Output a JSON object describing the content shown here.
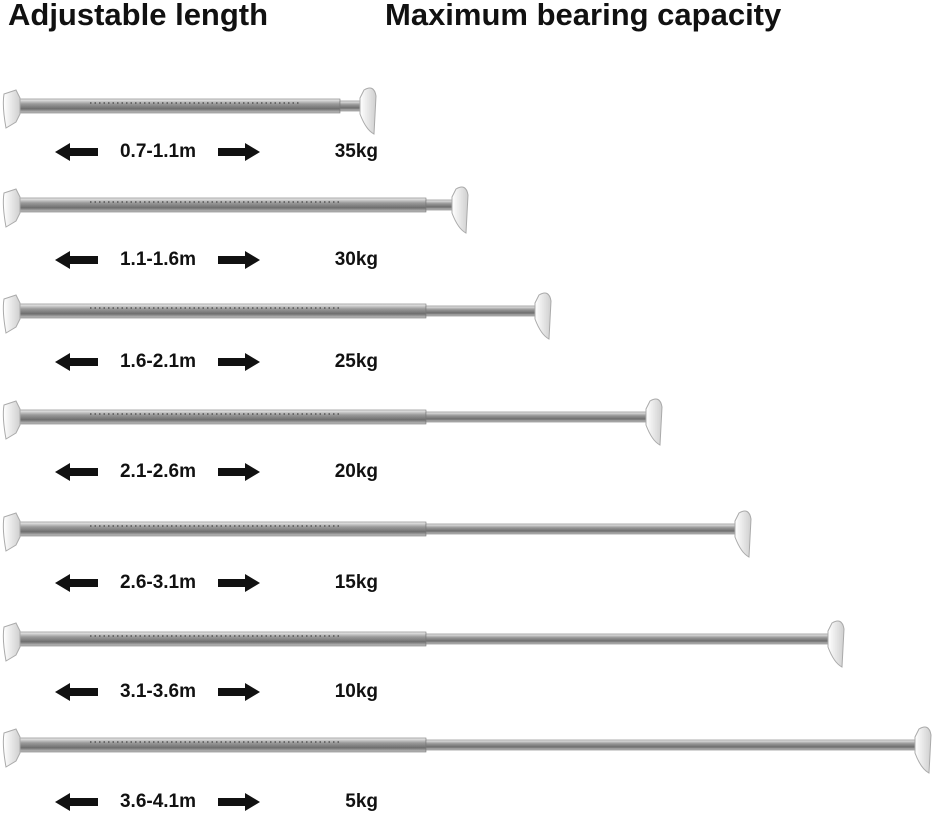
{
  "header": {
    "left": "Adjustable length",
    "right": "Maximum bearing capacity"
  },
  "rows": [
    {
      "length": "0.7-1.1m",
      "capacity": "35kg"
    },
    {
      "length": "1.1-1.6m",
      "capacity": "30kg"
    },
    {
      "length": "1.6-2.1m",
      "capacity": "25kg"
    },
    {
      "length": "2.1-2.6m",
      "capacity": "20kg"
    },
    {
      "length": "2.6-3.1m",
      "capacity": "15kg"
    },
    {
      "length": "3.1-3.6m",
      "capacity": "10kg"
    },
    {
      "length": "3.6-4.1m",
      "capacity": "5kg"
    }
  ]
}
